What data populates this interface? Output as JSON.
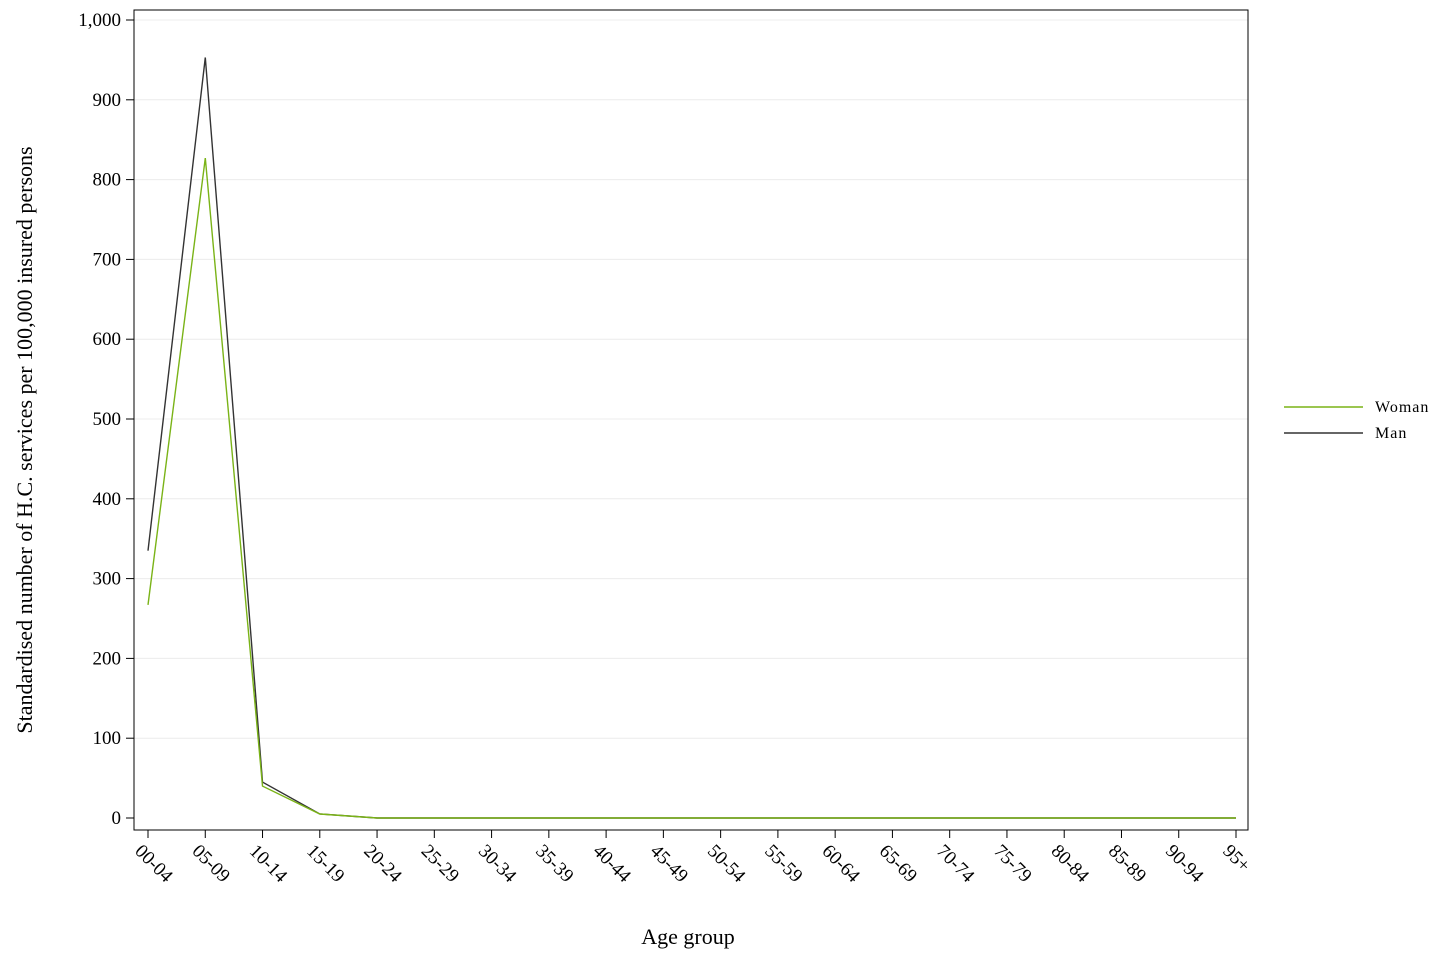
{
  "chart_data": {
    "type": "line",
    "title": "",
    "xlabel": "Age group",
    "ylabel": "Standardised number of H.C. services per 100,000 insured persons",
    "categories": [
      "00-04",
      "05-09",
      "10-14",
      "15-19",
      "20-24",
      "25-29",
      "30-34",
      "35-39",
      "40-44",
      "45-49",
      "50-54",
      "55-59",
      "60-64",
      "65-69",
      "70-74",
      "75-79",
      "80-84",
      "85-89",
      "90-94",
      "95+"
    ],
    "ylim": [
      0,
      1000
    ],
    "yticks": [
      0,
      100,
      200,
      300,
      400,
      500,
      600,
      700,
      800,
      900,
      1000
    ],
    "ytick_labels": [
      "0",
      "100",
      "200",
      "300",
      "400",
      "500",
      "600",
      "700",
      "800",
      "900",
      "1,000"
    ],
    "grid": true,
    "legend_position": "right",
    "series": [
      {
        "name": "Woman",
        "color": "#7ab317",
        "values": [
          267,
          827,
          40,
          5,
          0,
          0,
          0,
          0,
          0,
          0,
          0,
          0,
          0,
          0,
          0,
          0,
          0,
          0,
          0,
          0
        ]
      },
      {
        "name": "Man",
        "color": "#333333",
        "values": [
          335,
          953,
          45,
          5,
          0,
          0,
          0,
          0,
          0,
          0,
          0,
          0,
          0,
          0,
          0,
          0,
          0,
          0,
          0,
          0
        ]
      }
    ]
  }
}
